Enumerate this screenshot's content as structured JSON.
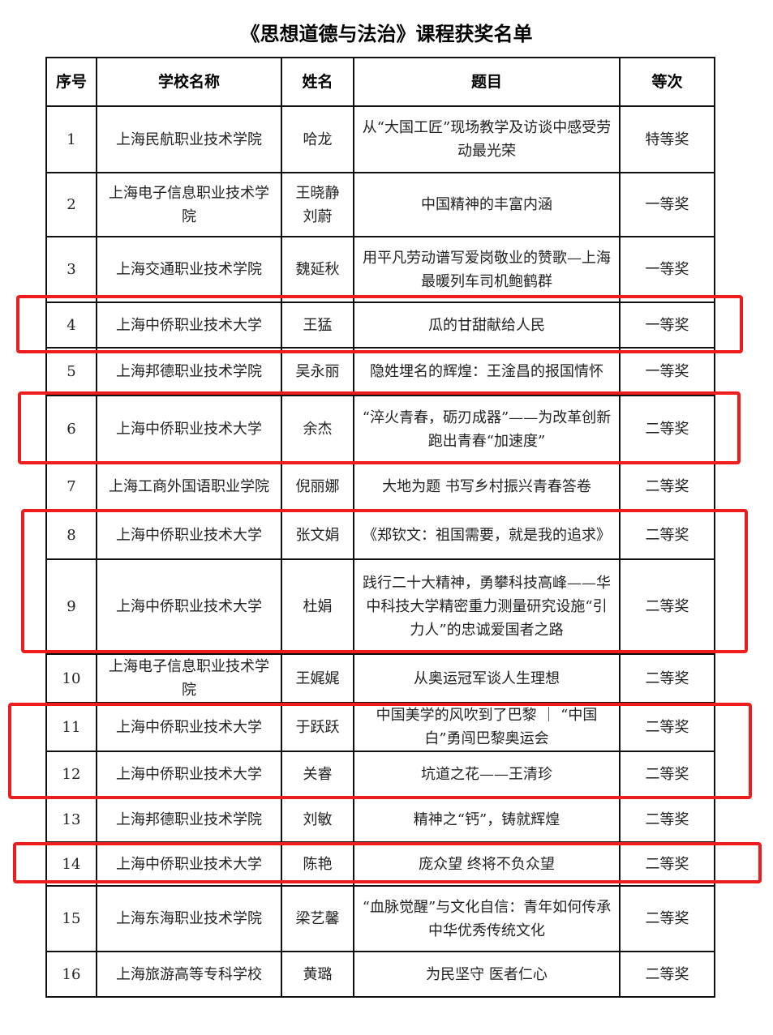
{
  "title": "《思想道德与法治》课程获奖名单",
  "headers": [
    "序号",
    "学校名称",
    "姓名",
    "题目",
    "等次"
  ],
  "rows": [
    [
      "1",
      "上海民航职业技术学院",
      "哈龙",
      "从“大国工匠”现场教学及访谈中感受劳动最光荣",
      "特等奖"
    ],
    [
      "2",
      "上海电子信息职业技术学院",
      "王晓静 刘蔚",
      "中国精神的丰富内涵",
      "一等奖"
    ],
    [
      "3",
      "上海交通职业技术学院",
      "魏延秋",
      "用平凡劳动谱写爱岗敬业的赞歌—上海最暖列车司机鲍鹤群",
      "一等奖"
    ],
    [
      "4",
      "上海中侨职业技术大学",
      "王猛",
      "瓜的甘甜献给人民",
      "一等奖"
    ],
    [
      "5",
      "上海邦德职业技术学院",
      "吴永丽",
      "隐姓埋名的辉煌：王淦昌的报国情怀",
      "一等奖"
    ],
    [
      "6",
      "上海中侨职业技术大学",
      "余杰",
      "“淬火青春，砺刃成器”——为改革创新跑出青春“加速度”",
      "二等奖"
    ],
    [
      "7",
      "上海工商外国语职业学院",
      "倪丽娜",
      "大地为题  书写乡村振兴青春答卷",
      "二等奖"
    ],
    [
      "8",
      "上海中侨职业技术大学",
      "张文娟",
      "《郑钦文：祖国需要，就是我的追求》",
      "二等奖"
    ],
    [
      "9",
      "上海中侨职业技术大学",
      "杜娟",
      "践行二十大精神，勇攀科技高峰——华中科技大学精密重力测量研究设施“引力人”的忠诚爱国者之路",
      "二等奖"
    ],
    [
      "10",
      "上海电子信息职业技术学院",
      "王娓娓",
      "从奥运冠军谈人生理想",
      "二等奖"
    ],
    [
      "11",
      "上海中侨职业技术大学",
      "于跃跃",
      "中国美学的风吹到了巴黎 ｜ “中国白”勇闯巴黎奥运会",
      "二等奖"
    ],
    [
      "12",
      "上海中侨职业技术大学",
      "关睿",
      "坑道之花——王清珍",
      "二等奖"
    ],
    [
      "13",
      "上海邦德职业技术学院",
      "刘敏",
      "精神之“钙”，铸就辉煌",
      "二等奖"
    ],
    [
      "14",
      "上海中侨职业技术大学",
      "陈艳",
      "庞众望  终将不负众望",
      "二等奖"
    ],
    [
      "15",
      "上海东海职业技术学院",
      "梁艺馨",
      "“血脉觉醒”与文化自信：青年如何传承中华优秀传统文化",
      "二等奖"
    ],
    [
      "16",
      "上海旅游高等专科学校",
      "黄璐",
      "为民坚守  医者仁心",
      "二等奖"
    ]
  ],
  "highlight_color": "#ee1c1c",
  "highlighted_rows": [
    "4",
    "6",
    "8",
    "9",
    "11",
    "12",
    "14"
  ]
}
